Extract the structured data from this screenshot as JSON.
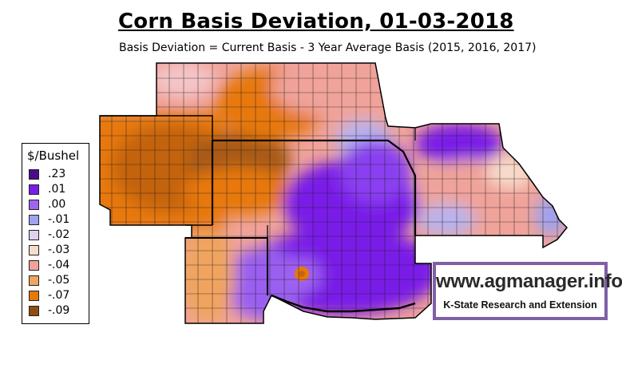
{
  "header": {
    "title": "Corn Basis Deviation, 01-03-2018",
    "subtitle": "Basis Deviation = Current Basis - 3 Year Average Basis (2015, 2016, 2017)"
  },
  "legend": {
    "title": "$/Bushel",
    "items": [
      {
        "label": ".23",
        "color": "#4b0b8c"
      },
      {
        "label": ".01",
        "color": "#7a1de8"
      },
      {
        "label": ".00",
        "color": "#a064f0"
      },
      {
        "label": "-.01",
        "color": "#9fa2ee"
      },
      {
        "label": "-.02",
        "color": "#e0d2ef"
      },
      {
        "label": "-.03",
        "color": "#f8dccb"
      },
      {
        "label": "-.04",
        "color": "#f0a39a"
      },
      {
        "label": "-.05",
        "color": "#f0a45e"
      },
      {
        "label": "-.07",
        "color": "#e7780a"
      },
      {
        "label": "-.09",
        "color": "#8e4e10"
      }
    ]
  },
  "logo": {
    "url": "www.agmanager.info",
    "tagline": "K-State Research and Extension",
    "border_color": "#7f5fa6"
  }
}
